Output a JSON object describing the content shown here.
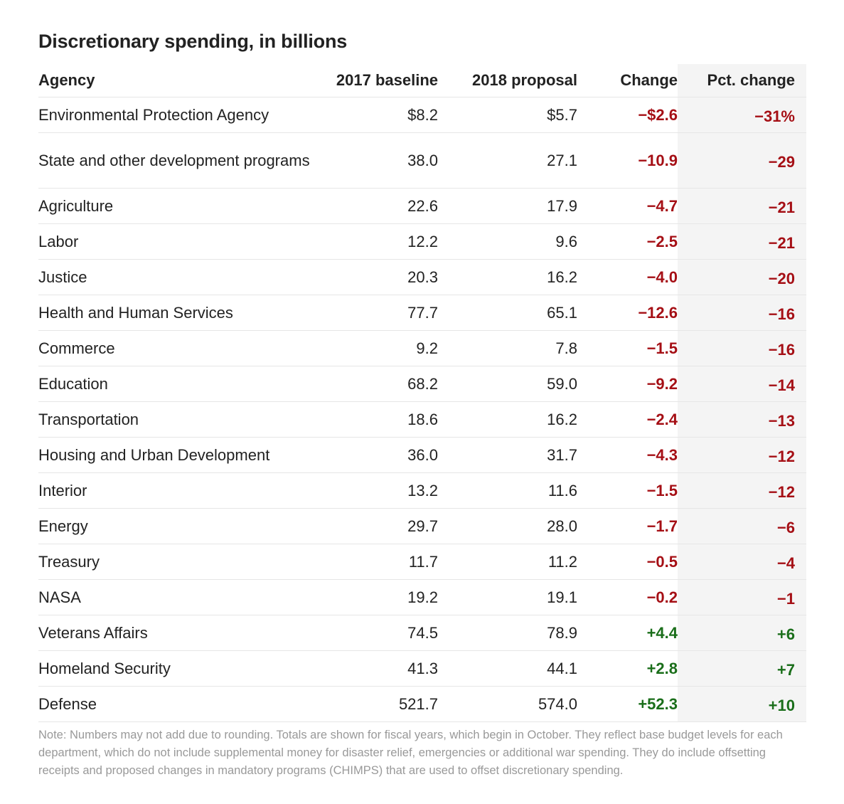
{
  "title": "Discretionary spending, in billions",
  "chart_data": {
    "type": "table",
    "title": "Discretionary spending, in billions",
    "columns": [
      "Agency",
      "2017 baseline",
      "2018 proposal",
      "Change",
      "Pct. change"
    ],
    "rows": [
      {
        "agency": "Environmental Protection Agency",
        "baseline": "$8.2",
        "proposal": "$5.7",
        "change": "−$2.6",
        "pct": "−31%",
        "sign": "neg"
      },
      {
        "agency": "State and other development programs",
        "baseline": "38.0",
        "proposal": "27.1",
        "change": "−10.9",
        "pct": "−29",
        "sign": "neg"
      },
      {
        "agency": "Agriculture",
        "baseline": "22.6",
        "proposal": "17.9",
        "change": "−4.7",
        "pct": "−21",
        "sign": "neg"
      },
      {
        "agency": "Labor",
        "baseline": "12.2",
        "proposal": "9.6",
        "change": "−2.5",
        "pct": "−21",
        "sign": "neg"
      },
      {
        "agency": "Justice",
        "baseline": "20.3",
        "proposal": "16.2",
        "change": "−4.0",
        "pct": "−20",
        "sign": "neg"
      },
      {
        "agency": "Health and Human Services",
        "baseline": "77.7",
        "proposal": "65.1",
        "change": "−12.6",
        "pct": "−16",
        "sign": "neg"
      },
      {
        "agency": "Commerce",
        "baseline": "9.2",
        "proposal": "7.8",
        "change": "−1.5",
        "pct": "−16",
        "sign": "neg"
      },
      {
        "agency": "Education",
        "baseline": "68.2",
        "proposal": "59.0",
        "change": "−9.2",
        "pct": "−14",
        "sign": "neg"
      },
      {
        "agency": "Transportation",
        "baseline": "18.6",
        "proposal": "16.2",
        "change": "−2.4",
        "pct": "−13",
        "sign": "neg"
      },
      {
        "agency": "Housing and Urban Development",
        "baseline": "36.0",
        "proposal": "31.7",
        "change": "−4.3",
        "pct": "−12",
        "sign": "neg"
      },
      {
        "agency": "Interior",
        "baseline": "13.2",
        "proposal": "11.6",
        "change": "−1.5",
        "pct": "−12",
        "sign": "neg"
      },
      {
        "agency": "Energy",
        "baseline": "29.7",
        "proposal": "28.0",
        "change": "−1.7",
        "pct": "−6",
        "sign": "neg"
      },
      {
        "agency": "Treasury",
        "baseline": "11.7",
        "proposal": "11.2",
        "change": "−0.5",
        "pct": "−4",
        "sign": "neg"
      },
      {
        "agency": "NASA",
        "baseline": "19.2",
        "proposal": "19.1",
        "change": "−0.2",
        "pct": "−1",
        "sign": "neg"
      },
      {
        "agency": "Veterans Affairs",
        "baseline": "74.5",
        "proposal": "78.9",
        "change": "+4.4",
        "pct": "+6",
        "sign": "pos"
      },
      {
        "agency": "Homeland Security",
        "baseline": "41.3",
        "proposal": "44.1",
        "change": "+2.8",
        "pct": "+7",
        "sign": "pos"
      },
      {
        "agency": "Defense",
        "baseline": "521.7",
        "proposal": "574.0",
        "change": "+52.3",
        "pct": "+10",
        "sign": "pos"
      }
    ],
    "colors": {
      "negative": "#a50f15",
      "positive": "#1a6e1a",
      "pct_column_bg": "#f4f4f4"
    }
  },
  "note": "Note: Numbers may not add due to rounding. Totals are shown for fiscal years, which begin in October. They reflect base budget levels for each department, which do not include supplemental money for disaster relief, emergencies or additional war spending. They do include offsetting receipts and proposed changes in mandatory programs (CHIMPS) that are used to offset discretionary spending."
}
